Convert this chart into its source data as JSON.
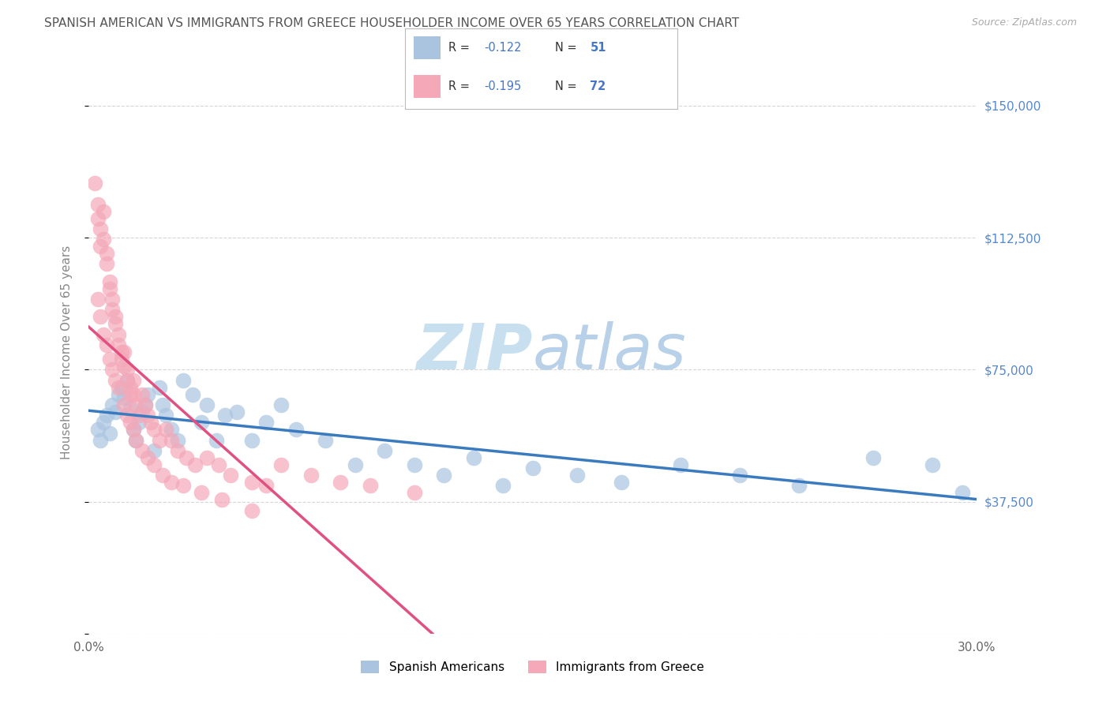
{
  "title": "SPANISH AMERICAN VS IMMIGRANTS FROM GREECE HOUSEHOLDER INCOME OVER 65 YEARS CORRELATION CHART",
  "source": "Source: ZipAtlas.com",
  "ylabel": "Householder Income Over 65 years",
  "xlim": [
    0.0,
    0.3
  ],
  "ylim": [
    0,
    160000
  ],
  "yticks": [
    0,
    37500,
    75000,
    112500,
    150000
  ],
  "ytick_labels": [
    "",
    "$37,500",
    "$75,000",
    "$112,500",
    "$150,000"
  ],
  "xticks": [
    0.0,
    0.05,
    0.1,
    0.15,
    0.2,
    0.25,
    0.3
  ],
  "xtick_labels": [
    "0.0%",
    "",
    "",
    "",
    "",
    "",
    "30.0%"
  ],
  "legend_label1": "Spanish Americans",
  "legend_label2": "Immigrants from Greece",
  "color_blue": "#aac4e0",
  "color_pink": "#f4a8b8",
  "color_blue_line": "#3a7abf",
  "color_pink_line": "#e05080",
  "title_color": "#555555",
  "source_color": "#aaaaaa",
  "axis_label_color": "#888888",
  "right_tick_color": "#5588cc",
  "watermark_color": "#c8dff0",
  "blue_scatter_x": [
    0.003,
    0.004,
    0.005,
    0.006,
    0.007,
    0.008,
    0.009,
    0.01,
    0.011,
    0.012,
    0.013,
    0.014,
    0.015,
    0.016,
    0.017,
    0.018,
    0.019,
    0.02,
    0.022,
    0.024,
    0.025,
    0.026,
    0.028,
    0.03,
    0.032,
    0.035,
    0.038,
    0.04,
    0.043,
    0.046,
    0.05,
    0.055,
    0.06,
    0.065,
    0.07,
    0.08,
    0.09,
    0.1,
    0.11,
    0.12,
    0.13,
    0.14,
    0.15,
    0.165,
    0.18,
    0.2,
    0.22,
    0.24,
    0.265,
    0.285,
    0.295
  ],
  "blue_scatter_y": [
    58000,
    55000,
    60000,
    62000,
    57000,
    65000,
    63000,
    68000,
    70000,
    67000,
    72000,
    64000,
    58000,
    55000,
    60000,
    63000,
    65000,
    68000,
    52000,
    70000,
    65000,
    62000,
    58000,
    55000,
    72000,
    68000,
    60000,
    65000,
    55000,
    62000,
    63000,
    55000,
    60000,
    65000,
    58000,
    55000,
    48000,
    52000,
    48000,
    45000,
    50000,
    42000,
    47000,
    45000,
    43000,
    48000,
    45000,
    42000,
    50000,
    48000,
    40000
  ],
  "pink_scatter_x": [
    0.002,
    0.003,
    0.003,
    0.004,
    0.004,
    0.005,
    0.005,
    0.006,
    0.006,
    0.007,
    0.007,
    0.008,
    0.008,
    0.009,
    0.009,
    0.01,
    0.01,
    0.011,
    0.011,
    0.012,
    0.012,
    0.013,
    0.013,
    0.014,
    0.014,
    0.015,
    0.015,
    0.016,
    0.017,
    0.018,
    0.019,
    0.02,
    0.021,
    0.022,
    0.024,
    0.026,
    0.028,
    0.03,
    0.033,
    0.036,
    0.04,
    0.044,
    0.048,
    0.055,
    0.06,
    0.065,
    0.075,
    0.085,
    0.095,
    0.11,
    0.003,
    0.004,
    0.005,
    0.006,
    0.007,
    0.008,
    0.009,
    0.01,
    0.012,
    0.013,
    0.014,
    0.015,
    0.016,
    0.018,
    0.02,
    0.022,
    0.025,
    0.028,
    0.032,
    0.038,
    0.045,
    0.055
  ],
  "pink_scatter_y": [
    128000,
    122000,
    118000,
    115000,
    110000,
    120000,
    112000,
    108000,
    105000,
    100000,
    98000,
    95000,
    92000,
    90000,
    88000,
    85000,
    82000,
    80000,
    78000,
    76000,
    80000,
    75000,
    72000,
    70000,
    68000,
    72000,
    68000,
    65000,
    62000,
    68000,
    65000,
    62000,
    60000,
    58000,
    55000,
    58000,
    55000,
    52000,
    50000,
    48000,
    50000,
    48000,
    45000,
    43000,
    42000,
    48000,
    45000,
    43000,
    42000,
    40000,
    95000,
    90000,
    85000,
    82000,
    78000,
    75000,
    72000,
    70000,
    65000,
    62000,
    60000,
    58000,
    55000,
    52000,
    50000,
    48000,
    45000,
    43000,
    42000,
    40000,
    38000,
    35000
  ]
}
